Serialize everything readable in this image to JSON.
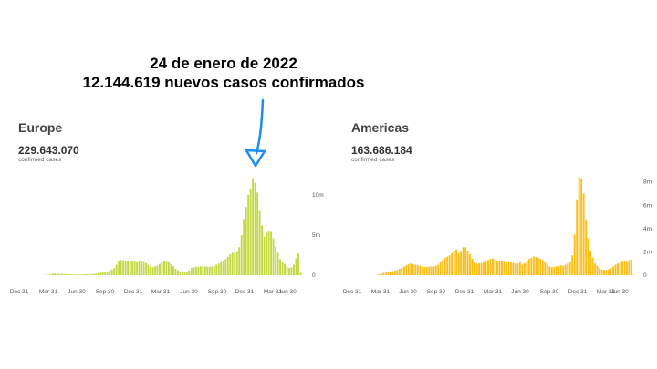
{
  "annotation": {
    "line1": "24 de enero de 2022",
    "line2": "12.144.619 nuevos casos confirmados",
    "arrow_color": "#1e8cf0"
  },
  "chart_data": [
    {
      "type": "bar",
      "title": "Europe",
      "total": "229.643.070",
      "subtitle": "confirmed cases",
      "color": "#c3d844",
      "x_ticks": [
        "Dec 31",
        "Mar 31",
        "Jun 30",
        "Sep 30",
        "Dec 31",
        "Mar 31",
        "Jun 30",
        "Sep 30",
        "Dec 31",
        "Mar 31",
        "Jun 30"
      ],
      "y_ticks": [
        "0",
        "5m",
        "10m"
      ],
      "y_tick_values": [
        0,
        5,
        10
      ],
      "ylim": [
        0,
        12.5
      ],
      "unit": "millions of weekly cases",
      "values": [
        0.01,
        0.02,
        0.05,
        0.15,
        0.2,
        0.22,
        0.2,
        0.18,
        0.17,
        0.15,
        0.13,
        0.12,
        0.1,
        0.1,
        0.09,
        0.09,
        0.1,
        0.1,
        0.11,
        0.12,
        0.13,
        0.15,
        0.17,
        0.2,
        0.25,
        0.3,
        0.35,
        0.4,
        0.45,
        0.55,
        0.7,
        0.9,
        1.3,
        1.7,
        1.9,
        1.85,
        1.8,
        1.7,
        1.65,
        1.7,
        1.75,
        1.6,
        1.7,
        1.8,
        1.65,
        1.5,
        1.3,
        1.1,
        1.0,
        1.1,
        1.2,
        1.4,
        1.6,
        1.7,
        1.65,
        1.6,
        1.4,
        1.1,
        0.8,
        0.6,
        0.45,
        0.4,
        0.35,
        0.4,
        0.6,
        0.9,
        1.0,
        1.05,
        1.05,
        1.1,
        1.1,
        1.1,
        1.05,
        1.05,
        1.1,
        1.2,
        1.3,
        1.45,
        1.6,
        1.8,
        2.0,
        2.3,
        2.6,
        2.8,
        2.75,
        2.9,
        3.5,
        5.0,
        7.0,
        8.5,
        10.0,
        10.8,
        12.1,
        11.5,
        10.3,
        8.0,
        6.2,
        4.8,
        5.3,
        5.5,
        5.4,
        4.6,
        3.6,
        2.8,
        2.0,
        1.6,
        1.4,
        1.1,
        0.9,
        1.0,
        1.3,
        2.1,
        2.7,
        0.3
      ]
    },
    {
      "type": "bar",
      "title": "Americas",
      "total": "163.686.184",
      "subtitle": "confirmed cases",
      "color": "#fbbd16",
      "x_ticks": [
        "Dec 31",
        "Mar 31",
        "Jun 30",
        "Sep 30",
        "Dec 31",
        "Mar 31",
        "Jun 30",
        "Sep 30",
        "Dec 31",
        "Mar 31",
        "Jun 30"
      ],
      "y_ticks": [
        "0",
        "2m",
        "4m",
        "6m",
        "8m"
      ],
      "y_tick_values": [
        0,
        2,
        4,
        6,
        8
      ],
      "ylim": [
        0,
        8.6
      ],
      "unit": "millions of weekly cases",
      "values": [
        0.02,
        0.1,
        0.15,
        0.2,
        0.22,
        0.25,
        0.3,
        0.35,
        0.4,
        0.45,
        0.55,
        0.65,
        0.75,
        0.85,
        0.95,
        1.0,
        0.95,
        0.9,
        0.85,
        0.8,
        0.8,
        0.7,
        0.7,
        0.75,
        0.75,
        0.75,
        0.8,
        0.9,
        1.1,
        1.3,
        1.5,
        1.6,
        1.7,
        1.9,
        2.1,
        2.2,
        1.9,
        2.0,
        2.4,
        2.4,
        2.1,
        1.8,
        1.4,
        1.1,
        1.0,
        1.0,
        1.05,
        1.1,
        1.2,
        1.3,
        1.4,
        1.45,
        1.35,
        1.25,
        1.2,
        1.2,
        1.15,
        1.1,
        1.1,
        1.1,
        1.05,
        1.0,
        1.0,
        1.1,
        0.9,
        1.0,
        1.2,
        1.4,
        1.5,
        1.6,
        1.55,
        1.5,
        1.4,
        1.3,
        1.1,
        0.9,
        0.75,
        0.7,
        0.7,
        0.75,
        0.8,
        0.85,
        0.8,
        0.9,
        1.0,
        1.1,
        1.7,
        3.5,
        6.5,
        8.4,
        8.3,
        7.0,
        4.7,
        3.2,
        2.1,
        1.5,
        1.0,
        0.8,
        0.6,
        0.5,
        0.45,
        0.45,
        0.5,
        0.6,
        0.75,
        0.9,
        1.0,
        1.1,
        1.15,
        1.25,
        1.15,
        1.3,
        1.35,
        0.05
      ]
    }
  ]
}
